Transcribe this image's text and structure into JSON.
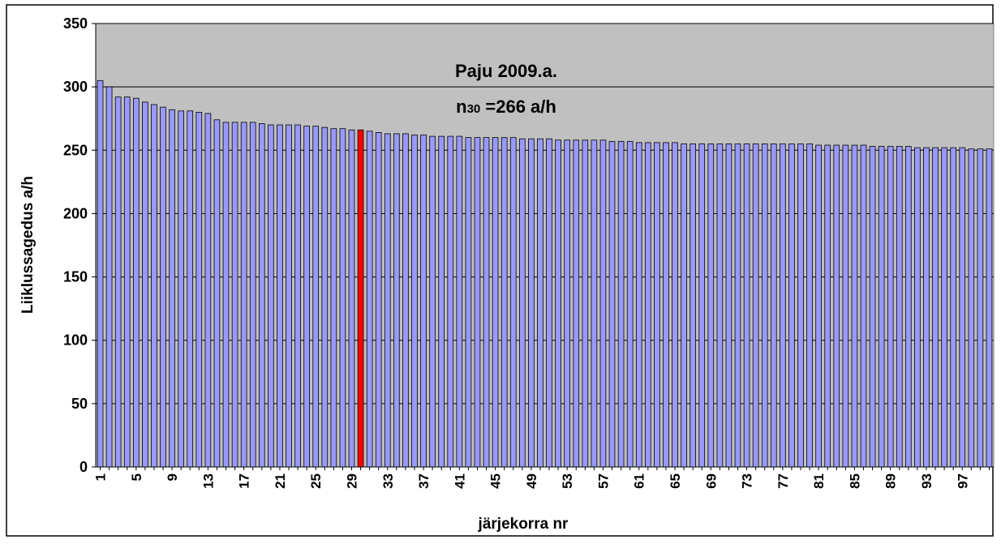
{
  "chart_data": {
    "type": "bar",
    "title": "",
    "xlabel": "järjekorra nr",
    "ylabel": "Liiklussagedus a/h",
    "ylim": [
      0,
      350
    ],
    "yticks": [
      "0",
      "50",
      "100",
      "150",
      "200",
      "250",
      "300",
      "350"
    ],
    "xtick_labels": [
      "1",
      "5",
      "9",
      "13",
      "17",
      "21",
      "25",
      "29",
      "33",
      "37",
      "41",
      "45",
      "49",
      "53",
      "57",
      "61",
      "65",
      "69",
      "73",
      "77",
      "81",
      "85",
      "89",
      "93",
      "97"
    ],
    "grid": "horizontal",
    "highlight_index": 30,
    "colors": {
      "plot_background": "#c0c0c0",
      "bar": "#9999ff",
      "bar_highlight": "#ff0000",
      "bar_outline": "#000000"
    },
    "annotation": {
      "line1": "Paju 2009.a.",
      "line2_n": "n",
      "line2_sub": "30",
      "line2_rest": " =266 a/h"
    },
    "x": [
      1,
      2,
      3,
      4,
      5,
      6,
      7,
      8,
      9,
      10,
      11,
      12,
      13,
      14,
      15,
      16,
      17,
      18,
      19,
      20,
      21,
      22,
      23,
      24,
      25,
      26,
      27,
      28,
      29,
      30,
      31,
      32,
      33,
      34,
      35,
      36,
      37,
      38,
      39,
      40,
      41,
      42,
      43,
      44,
      45,
      46,
      47,
      48,
      49,
      50,
      51,
      52,
      53,
      54,
      55,
      56,
      57,
      58,
      59,
      60,
      61,
      62,
      63,
      64,
      65,
      66,
      67,
      68,
      69,
      70,
      71,
      72,
      73,
      74,
      75,
      76,
      77,
      78,
      79,
      80,
      81,
      82,
      83,
      84,
      85,
      86,
      87,
      88,
      89,
      90,
      91,
      92,
      93,
      94,
      95,
      96,
      97,
      98,
      99,
      100
    ],
    "values": [
      305,
      300,
      292,
      292,
      291,
      288,
      286,
      284,
      282,
      281,
      281,
      280,
      279,
      274,
      272,
      272,
      272,
      272,
      271,
      270,
      270,
      270,
      270,
      269,
      269,
      268,
      267,
      267,
      266,
      266,
      265,
      264,
      263,
      263,
      263,
      262,
      262,
      261,
      261,
      261,
      261,
      260,
      260,
      260,
      260,
      260,
      260,
      259,
      259,
      259,
      259,
      258,
      258,
      258,
      258,
      258,
      258,
      257,
      257,
      257,
      256,
      256,
      256,
      256,
      256,
      255,
      255,
      255,
      255,
      255,
      255,
      255,
      255,
      255,
      255,
      255,
      255,
      255,
      255,
      255,
      254,
      254,
      254,
      254,
      254,
      254,
      253,
      253,
      253,
      253,
      253,
      252,
      252,
      252,
      252,
      252,
      252,
      251,
      251,
      251
    ]
  }
}
